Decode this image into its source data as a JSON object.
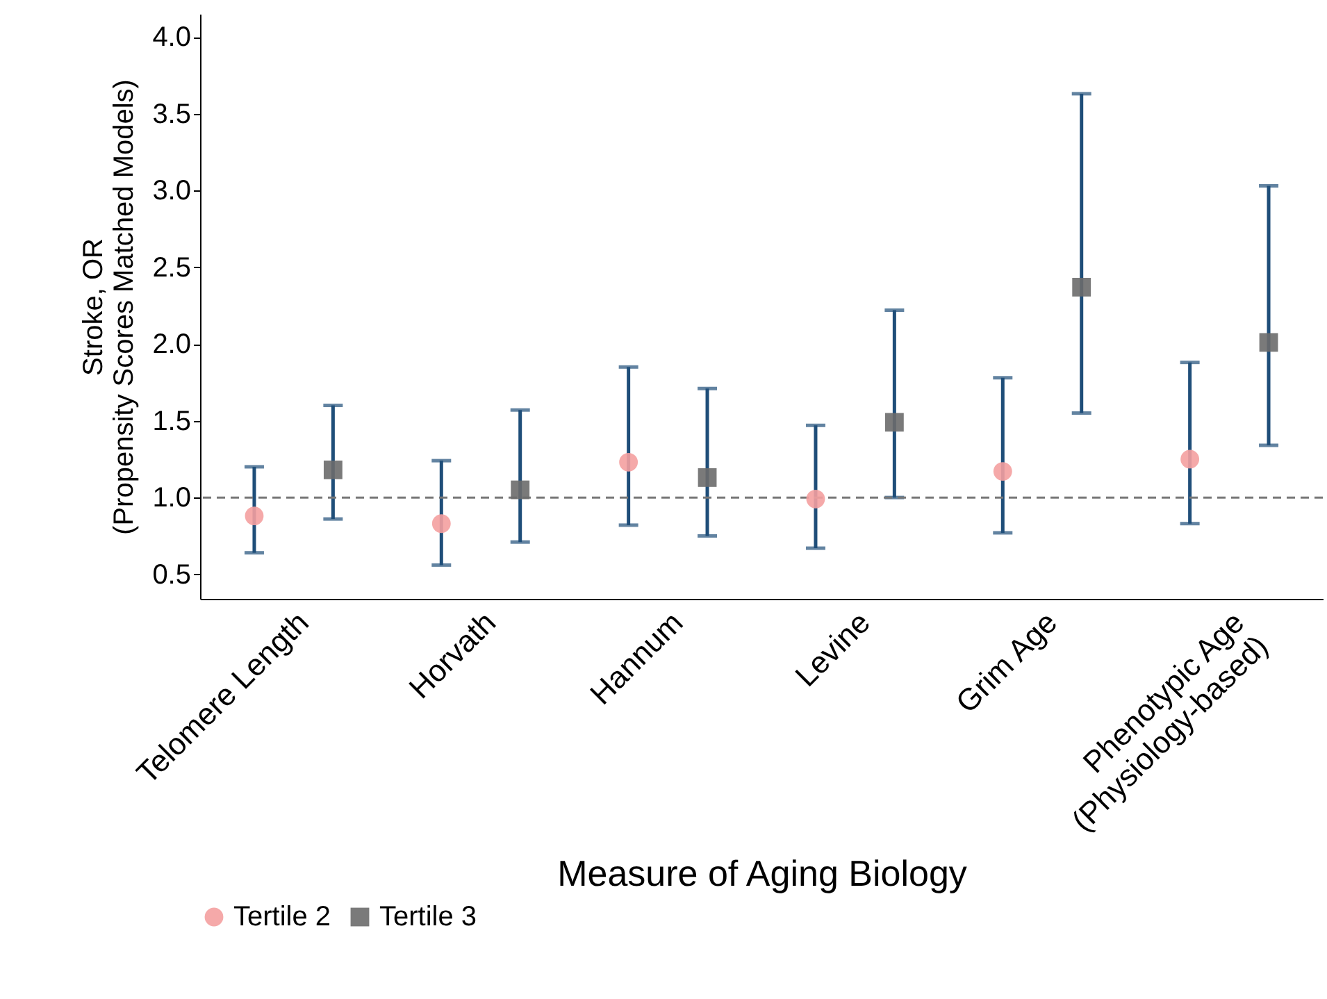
{
  "chart_data": {
    "type": "scatter",
    "xlabel": "Measure of Aging Biology",
    "ylabel": "Stroke, OR\n(Propensity Scores Matched Models)",
    "categories": [
      "Telomere Length",
      "Horvath",
      "Hannum",
      "Levine",
      "Grim Age",
      "Phenotypic Age\n(Physiology-based)"
    ],
    "series": [
      {
        "name": "Tertile 2",
        "color": "#f4a0a0",
        "marker": "circle",
        "values": [
          0.88,
          0.83,
          1.23,
          0.99,
          1.17,
          1.25
        ],
        "errors": [
          [
            0.64,
            1.2
          ],
          [
            0.56,
            1.24
          ],
          [
            0.82,
            1.85
          ],
          [
            0.67,
            1.47
          ],
          [
            0.77,
            1.78
          ],
          [
            0.83,
            1.88
          ]
        ]
      },
      {
        "name": "Tertile 3",
        "color": "#6b6b6b",
        "marker": "square",
        "values": [
          1.18,
          1.05,
          1.13,
          1.49,
          2.37,
          2.01
        ],
        "errors": [
          [
            0.86,
            1.6
          ],
          [
            0.71,
            1.57
          ],
          [
            0.75,
            1.71
          ],
          [
            1.0,
            2.22
          ],
          [
            1.55,
            3.63
          ],
          [
            1.34,
            3.03
          ]
        ]
      }
    ],
    "ylim": [
      0.34,
      4.15
    ],
    "yticks": [
      {
        "value": 0.5,
        "label": "0.5"
      },
      {
        "value": 1,
        "label": "1.0"
      },
      {
        "value": 1.5,
        "label": "1.5"
      },
      {
        "value": 2,
        "label": "2.0"
      },
      {
        "value": 2.5,
        "label": "2.5"
      },
      {
        "value": 3,
        "label": "3.0"
      },
      {
        "value": 3.5,
        "label": "3.5"
      },
      {
        "value": 4,
        "label": "4.0"
      }
    ],
    "ref_lines": [
      {
        "axis": "y",
        "value": 1,
        "color": "#777777",
        "line_style": "dashed"
      }
    ],
    "grid": false,
    "legend": "bottom"
  }
}
